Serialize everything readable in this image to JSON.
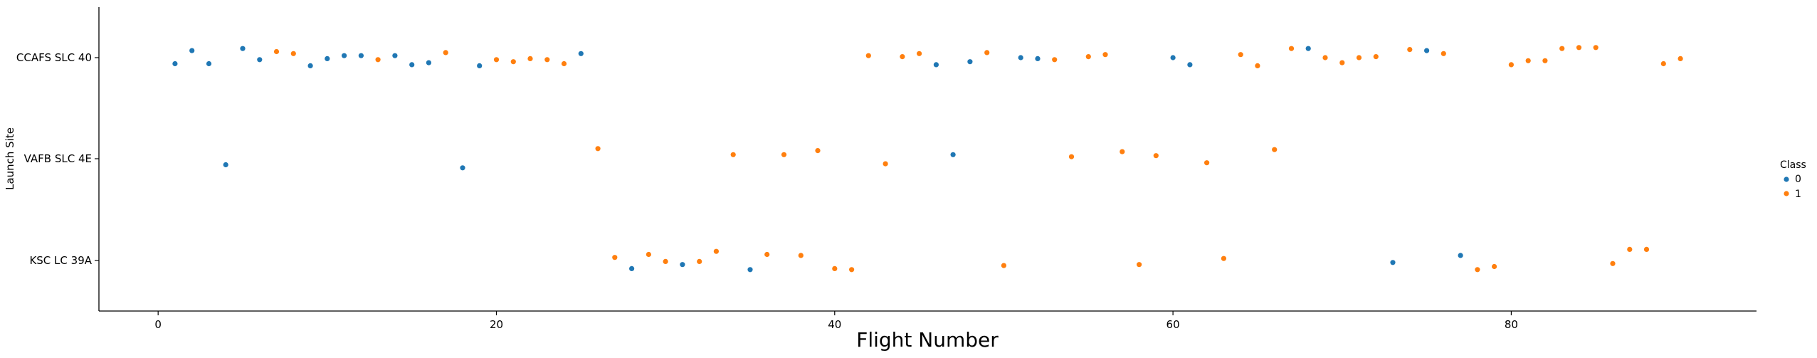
{
  "chart_data": {
    "type": "scatter",
    "title": "",
    "xlabel": "Flight Number",
    "ylabel": "Launch Site",
    "xlim": [
      -3.5,
      94.5
    ],
    "xticks": [
      0,
      20,
      40,
      60,
      80
    ],
    "xtick_labels": [
      "0",
      "20",
      "40",
      "60",
      "80"
    ],
    "categories": [
      "CCAFS SLC 40",
      "VAFB SLC 4E",
      "KSC LC 39A"
    ],
    "grid": false,
    "legend": {
      "title": "Class",
      "placement": "right",
      "entries": [
        "0",
        "1"
      ]
    },
    "colors": {
      "0": "#1f77b4",
      "1": "#ff7f0e"
    },
    "series": [
      {
        "name": "0",
        "points": [
          {
            "x": 1,
            "y": "CCAFS SLC 40",
            "jitter": -0.06
          },
          {
            "x": 2,
            "y": "CCAFS SLC 40",
            "jitter": 0.07
          },
          {
            "x": 3,
            "y": "CCAFS SLC 40",
            "jitter": -0.06
          },
          {
            "x": 4,
            "y": "VAFB SLC 4E",
            "jitter": -0.06
          },
          {
            "x": 5,
            "y": "CCAFS SLC 40",
            "jitter": 0.09
          },
          {
            "x": 6,
            "y": "CCAFS SLC 40",
            "jitter": -0.02
          },
          {
            "x": 9,
            "y": "CCAFS SLC 40",
            "jitter": -0.08
          },
          {
            "x": 10,
            "y": "CCAFS SLC 40",
            "jitter": -0.01
          },
          {
            "x": 11,
            "y": "CCAFS SLC 40",
            "jitter": 0.02
          },
          {
            "x": 12,
            "y": "CCAFS SLC 40",
            "jitter": 0.02
          },
          {
            "x": 14,
            "y": "CCAFS SLC 40",
            "jitter": 0.02
          },
          {
            "x": 15,
            "y": "CCAFS SLC 40",
            "jitter": -0.07
          },
          {
            "x": 16,
            "y": "CCAFS SLC 40",
            "jitter": -0.05
          },
          {
            "x": 18,
            "y": "VAFB SLC 4E",
            "jitter": -0.09
          },
          {
            "x": 19,
            "y": "CCAFS SLC 40",
            "jitter": -0.08
          },
          {
            "x": 25,
            "y": "CCAFS SLC 40",
            "jitter": 0.04
          },
          {
            "x": 28,
            "y": "KSC LC 39A",
            "jitter": -0.08
          },
          {
            "x": 31,
            "y": "KSC LC 39A",
            "jitter": -0.04
          },
          {
            "x": 35,
            "y": "KSC LC 39A",
            "jitter": -0.09
          },
          {
            "x": 46,
            "y": "CCAFS SLC 40",
            "jitter": -0.07
          },
          {
            "x": 47,
            "y": "VAFB SLC 4E",
            "jitter": 0.04
          },
          {
            "x": 48,
            "y": "CCAFS SLC 40",
            "jitter": -0.04
          },
          {
            "x": 51,
            "y": "CCAFS SLC 40",
            "jitter": 0.0
          },
          {
            "x": 52,
            "y": "CCAFS SLC 40",
            "jitter": -0.01
          },
          {
            "x": 60,
            "y": "CCAFS SLC 40",
            "jitter": 0.0
          },
          {
            "x": 61,
            "y": "CCAFS SLC 40",
            "jitter": -0.07
          },
          {
            "x": 68,
            "y": "CCAFS SLC 40",
            "jitter": 0.09
          },
          {
            "x": 73,
            "y": "KSC LC 39A",
            "jitter": -0.02
          },
          {
            "x": 75,
            "y": "CCAFS SLC 40",
            "jitter": 0.07
          },
          {
            "x": 77,
            "y": "KSC LC 39A",
            "jitter": 0.05
          }
        ]
      },
      {
        "name": "1",
        "points": [
          {
            "x": 7,
            "y": "CCAFS SLC 40",
            "jitter": 0.06
          },
          {
            "x": 8,
            "y": "CCAFS SLC 40",
            "jitter": 0.04
          },
          {
            "x": 13,
            "y": "CCAFS SLC 40",
            "jitter": -0.02
          },
          {
            "x": 17,
            "y": "CCAFS SLC 40",
            "jitter": 0.05
          },
          {
            "x": 20,
            "y": "CCAFS SLC 40",
            "jitter": -0.02
          },
          {
            "x": 21,
            "y": "CCAFS SLC 40",
            "jitter": -0.04
          },
          {
            "x": 22,
            "y": "CCAFS SLC 40",
            "jitter": -0.01
          },
          {
            "x": 23,
            "y": "CCAFS SLC 40",
            "jitter": -0.02
          },
          {
            "x": 24,
            "y": "CCAFS SLC 40",
            "jitter": -0.06
          },
          {
            "x": 26,
            "y": "VAFB SLC 4E",
            "jitter": 0.1
          },
          {
            "x": 27,
            "y": "KSC LC 39A",
            "jitter": 0.03
          },
          {
            "x": 29,
            "y": "KSC LC 39A",
            "jitter": 0.06
          },
          {
            "x": 30,
            "y": "KSC LC 39A",
            "jitter": -0.01
          },
          {
            "x": 32,
            "y": "KSC LC 39A",
            "jitter": -0.01
          },
          {
            "x": 33,
            "y": "KSC LC 39A",
            "jitter": 0.09
          },
          {
            "x": 34,
            "y": "VAFB SLC 4E",
            "jitter": 0.04
          },
          {
            "x": 36,
            "y": "KSC LC 39A",
            "jitter": 0.06
          },
          {
            "x": 37,
            "y": "VAFB SLC 4E",
            "jitter": 0.04
          },
          {
            "x": 38,
            "y": "KSC LC 39A",
            "jitter": 0.05
          },
          {
            "x": 39,
            "y": "VAFB SLC 4E",
            "jitter": 0.08
          },
          {
            "x": 40,
            "y": "KSC LC 39A",
            "jitter": -0.08
          },
          {
            "x": 41,
            "y": "KSC LC 39A",
            "jitter": -0.09
          },
          {
            "x": 42,
            "y": "CCAFS SLC 40",
            "jitter": 0.02
          },
          {
            "x": 43,
            "y": "VAFB SLC 4E",
            "jitter": -0.05
          },
          {
            "x": 44,
            "y": "CCAFS SLC 40",
            "jitter": 0.01
          },
          {
            "x": 45,
            "y": "CCAFS SLC 40",
            "jitter": 0.04
          },
          {
            "x": 49,
            "y": "CCAFS SLC 40",
            "jitter": 0.05
          },
          {
            "x": 50,
            "y": "KSC LC 39A",
            "jitter": -0.05
          },
          {
            "x": 53,
            "y": "CCAFS SLC 40",
            "jitter": -0.02
          },
          {
            "x": 54,
            "y": "VAFB SLC 4E",
            "jitter": 0.02
          },
          {
            "x": 55,
            "y": "CCAFS SLC 40",
            "jitter": 0.01
          },
          {
            "x": 56,
            "y": "CCAFS SLC 40",
            "jitter": 0.03
          },
          {
            "x": 57,
            "y": "VAFB SLC 4E",
            "jitter": 0.07
          },
          {
            "x": 58,
            "y": "KSC LC 39A",
            "jitter": -0.04
          },
          {
            "x": 59,
            "y": "VAFB SLC 4E",
            "jitter": 0.03
          },
          {
            "x": 62,
            "y": "VAFB SLC 4E",
            "jitter": -0.04
          },
          {
            "x": 63,
            "y": "KSC LC 39A",
            "jitter": 0.02
          },
          {
            "x": 64,
            "y": "CCAFS SLC 40",
            "jitter": 0.03
          },
          {
            "x": 65,
            "y": "CCAFS SLC 40",
            "jitter": -0.08
          },
          {
            "x": 66,
            "y": "VAFB SLC 4E",
            "jitter": 0.09
          },
          {
            "x": 67,
            "y": "CCAFS SLC 40",
            "jitter": 0.09
          },
          {
            "x": 69,
            "y": "CCAFS SLC 40",
            "jitter": 0.0
          },
          {
            "x": 70,
            "y": "CCAFS SLC 40",
            "jitter": -0.05
          },
          {
            "x": 71,
            "y": "CCAFS SLC 40",
            "jitter": 0.0
          },
          {
            "x": 72,
            "y": "CCAFS SLC 40",
            "jitter": 0.01
          },
          {
            "x": 74,
            "y": "CCAFS SLC 40",
            "jitter": 0.08
          },
          {
            "x": 76,
            "y": "CCAFS SLC 40",
            "jitter": 0.04
          },
          {
            "x": 78,
            "y": "KSC LC 39A",
            "jitter": -0.09
          },
          {
            "x": 79,
            "y": "KSC LC 39A",
            "jitter": -0.06
          },
          {
            "x": 80,
            "y": "CCAFS SLC 40",
            "jitter": -0.07
          },
          {
            "x": 81,
            "y": "CCAFS SLC 40",
            "jitter": -0.03
          },
          {
            "x": 82,
            "y": "CCAFS SLC 40",
            "jitter": -0.03
          },
          {
            "x": 83,
            "y": "CCAFS SLC 40",
            "jitter": 0.09
          },
          {
            "x": 84,
            "y": "CCAFS SLC 40",
            "jitter": 0.1
          },
          {
            "x": 85,
            "y": "CCAFS SLC 40",
            "jitter": 0.1
          },
          {
            "x": 86,
            "y": "KSC LC 39A",
            "jitter": -0.03
          },
          {
            "x": 87,
            "y": "KSC LC 39A",
            "jitter": 0.11
          },
          {
            "x": 88,
            "y": "KSC LC 39A",
            "jitter": 0.11
          },
          {
            "x": 89,
            "y": "CCAFS SLC 40",
            "jitter": -0.06
          },
          {
            "x": 90,
            "y": "CCAFS SLC 40",
            "jitter": -0.01
          }
        ]
      }
    ]
  }
}
